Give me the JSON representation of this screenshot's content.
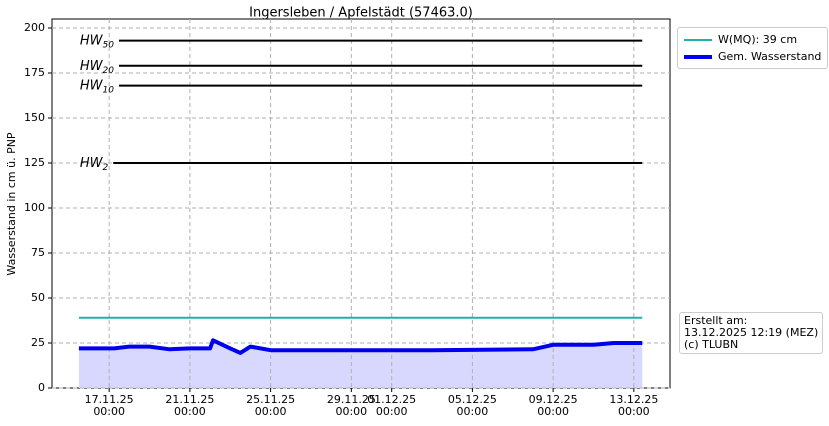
{
  "chart_data": {
    "type": "line",
    "title": "Ingersleben / Apfelstädt (57463.0)",
    "y_label": "Wasserstand in cm ü. PNP",
    "xlim": [
      "2025-11-14T04:00",
      "2025-12-14T19:00"
    ],
    "xticks": [
      {
        "value": "2025-11-17T00:00",
        "label": "17.11.25\n00:00"
      },
      {
        "value": "2025-11-21T00:00",
        "label": "21.11.25\n00:00"
      },
      {
        "value": "2025-11-25T00:00",
        "label": "25.11.25\n00:00"
      },
      {
        "value": "2025-11-29T00:00",
        "label": "29.11.25\n00:00"
      },
      {
        "value": "2025-12-01T00:00",
        "label": "01.12.25\n00:00"
      },
      {
        "value": "2025-12-05T00:00",
        "label": "05.12.25\n00:00"
      },
      {
        "value": "2025-12-09T00:00",
        "label": "09.12.25\n00:00"
      },
      {
        "value": "2025-12-13T00:00",
        "label": "13.12.25\n00:00"
      }
    ],
    "ylim": [
      0,
      205
    ],
    "yticks": [
      0,
      25,
      50,
      75,
      100,
      125,
      150,
      175,
      200
    ],
    "grid": true,
    "legend": "outside upper right",
    "x": [
      "2025-11-15T12:00",
      "2025-11-16T00:00",
      "2025-11-17T06:00",
      "2025-11-18T00:00",
      "2025-11-19T00:00",
      "2025-11-20T00:00",
      "2025-11-21T00:00",
      "2025-11-22T00:00",
      "2025-11-22T03:30",
      "2025-11-23T00:00",
      "2025-11-23T12:00",
      "2025-11-24T00:00",
      "2025-11-24T12:00",
      "2025-11-25T00:00",
      "2025-11-29T00:00",
      "2025-12-03T00:00",
      "2025-12-08T00:00",
      "2025-12-09T00:00",
      "2025-12-11T00:00",
      "2025-12-12T00:00",
      "2025-12-13T10:00"
    ],
    "series": [
      {
        "name": "W(MQ): 39 cm",
        "color": "#20b2aa",
        "width": 2,
        "values": [
          39,
          39,
          39,
          39,
          39,
          39,
          39,
          39,
          39,
          39,
          39,
          39,
          39,
          39,
          39,
          39,
          39,
          39,
          39,
          39,
          39
        ]
      },
      {
        "name": "Gem. Wasserstand",
        "color": "#0000ee",
        "width": 4,
        "fill": "#d8d8ff",
        "values": [
          22,
          22,
          22,
          23,
          23,
          21.5,
          22,
          22,
          26.5,
          22,
          19.5,
          23,
          22,
          21,
          21,
          21,
          21.5,
          24,
          24,
          25,
          25
        ]
      }
    ],
    "thresholds": [
      {
        "label": "HW",
        "subscript": "50",
        "value": 193
      },
      {
        "label": "HW",
        "subscript": "20",
        "value": 179
      },
      {
        "label": "HW",
        "subscript": "10",
        "value": 168
      },
      {
        "label": "HW",
        "subscript": "2",
        "value": 125
      }
    ],
    "note": [
      "Erstellt am:",
      "13.12.2025 12:19 (MEZ)",
      "(c) TLUBN"
    ]
  }
}
